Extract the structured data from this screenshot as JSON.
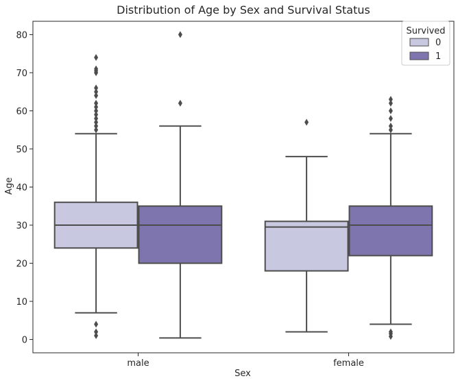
{
  "chart_data": {
    "type": "boxplot",
    "title": "Distribution of Age by Sex and Survival Status",
    "xlabel": "Sex",
    "ylabel": "Age",
    "categories": [
      "male",
      "female"
    ],
    "ylim": [
      -3.5,
      83.5
    ],
    "yticks": [
      0,
      10,
      20,
      30,
      40,
      50,
      60,
      70,
      80
    ],
    "legend": {
      "title": "Survived",
      "position": "top-right"
    },
    "series": [
      {
        "name": "0",
        "color": "#c8c8e0",
        "boxes": [
          {
            "category": "male",
            "whisker_low": 7,
            "q1": 24,
            "median": 30,
            "q3": 36,
            "whisker_high": 54,
            "outliers": [
              1,
              2,
              4,
              55,
              56,
              57,
              58,
              59,
              60,
              61,
              62,
              64,
              65,
              66,
              70,
              70.5,
              71,
              74
            ]
          },
          {
            "category": "female",
            "whisker_low": 2,
            "q1": 18,
            "median": 29.5,
            "q3": 31,
            "whisker_high": 48,
            "outliers": [
              57
            ]
          }
        ]
      },
      {
        "name": "1",
        "color": "#7e75ae",
        "boxes": [
          {
            "category": "male",
            "whisker_low": 0.4,
            "q1": 20,
            "median": 30,
            "q3": 35,
            "whisker_high": 56,
            "outliers": [
              62,
              80
            ]
          },
          {
            "category": "female",
            "whisker_low": 4,
            "q1": 22,
            "median": 30,
            "q3": 35,
            "whisker_high": 54,
            "outliers": [
              0.8,
              1.5,
              2,
              55,
              56,
              58,
              60,
              62,
              63
            ]
          }
        ]
      }
    ]
  }
}
